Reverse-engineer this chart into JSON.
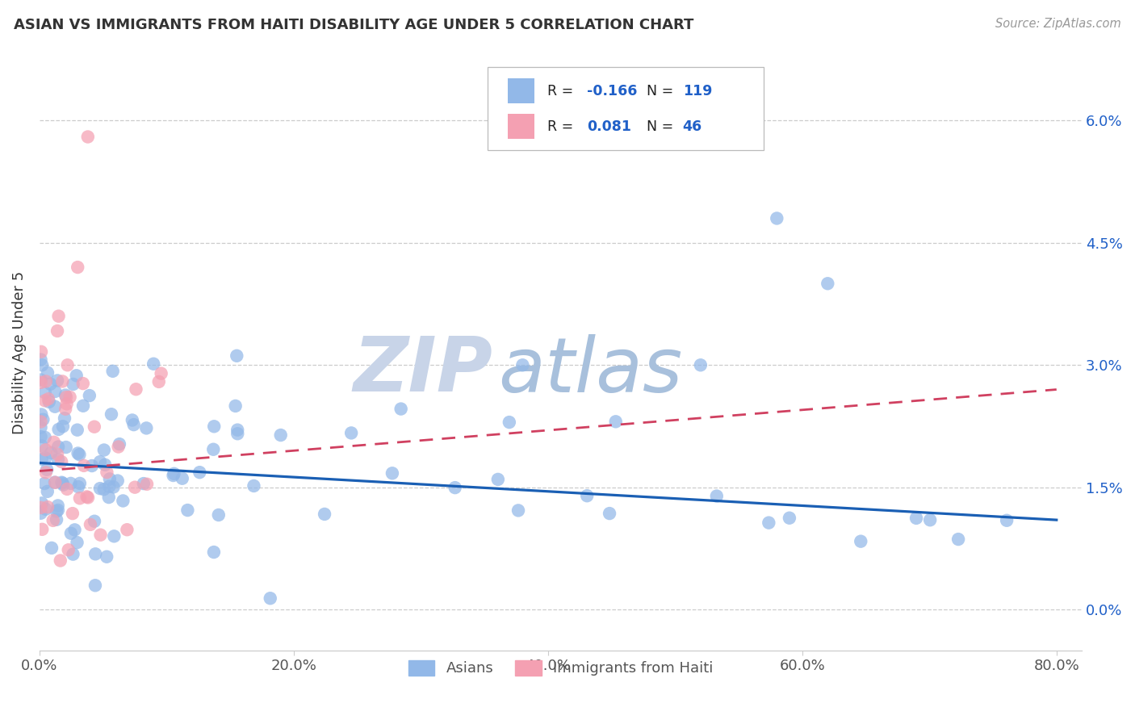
{
  "title": "ASIAN VS IMMIGRANTS FROM HAITI DISABILITY AGE UNDER 5 CORRELATION CHART",
  "source": "Source: ZipAtlas.com",
  "ylabel": "Disability Age Under 5",
  "xlabel_ticks": [
    "0.0%",
    "20.0%",
    "40.0%",
    "60.0%",
    "80.0%"
  ],
  "ylabel_ticks_right": [
    "0.0%",
    "1.5%",
    "3.0%",
    "4.5%",
    "6.0%"
  ],
  "ytick_vals": [
    0.0,
    0.015,
    0.03,
    0.045,
    0.06
  ],
  "xtick_vals": [
    0.0,
    0.2,
    0.4,
    0.6,
    0.8
  ],
  "xlim": [
    0.0,
    0.82
  ],
  "ylim": [
    -0.005,
    0.068
  ],
  "asian_r": "-0.166",
  "asian_n": "119",
  "haiti_r": "0.081",
  "haiti_n": "46",
  "legend_labels": [
    "Asians",
    "Immigrants from Haiti"
  ],
  "asian_color": "#92b8e8",
  "haiti_color": "#f4a0b2",
  "asian_line_color": "#1a5fb4",
  "haiti_line_color": "#d04060",
  "r_color": "#2060c8",
  "n_color": "#2060c8",
  "watermark_zip": "ZIP",
  "watermark_atlas": "atlas",
  "watermark_color_zip": "#c8d4e8",
  "watermark_color_atlas": "#a8c4e0",
  "background_color": "#ffffff",
  "grid_color": "#cccccc",
  "title_color": "#333333",
  "axis_label_color": "#555555",
  "right_tick_color": "#2060c8",
  "legend_border_color": "#bbbbbb",
  "asian_line_y0": 0.018,
  "asian_line_y1": 0.011,
  "haiti_line_y0": 0.017,
  "haiti_line_y1": 0.027
}
